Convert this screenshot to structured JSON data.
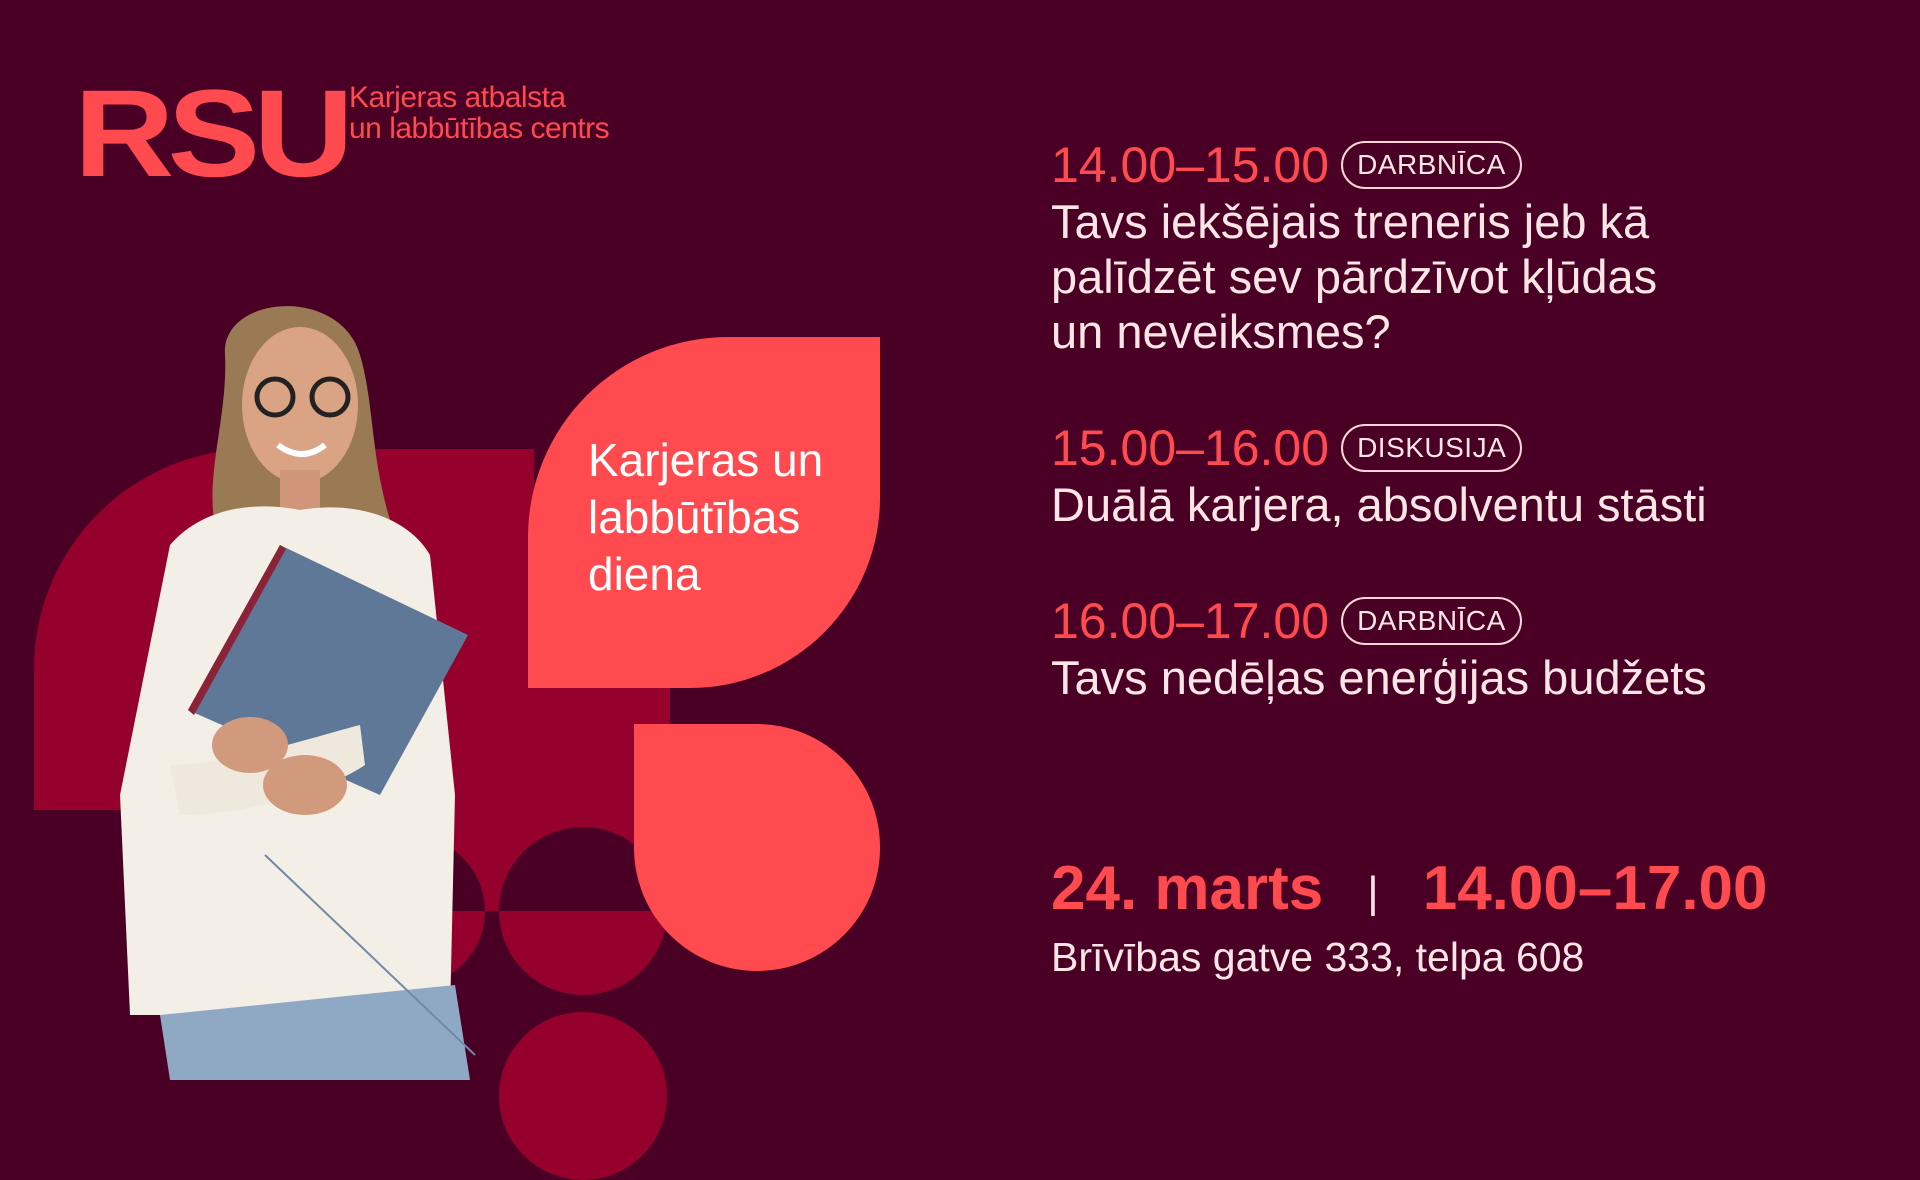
{
  "brand": {
    "logo_text": "RSU",
    "center_line1": "Karjeras atbalsta",
    "center_line2": "un labbūtības centrs"
  },
  "event": {
    "name_lines": [
      "Karjeras un",
      "labbūtības",
      "diena"
    ]
  },
  "schedule": [
    {
      "time": "14.00–15.00",
      "type": "DARBNĪCA",
      "title_lines": [
        "Tavs iekšējais treneris jeb kā",
        "palīdzēt sev pārdzīvot kļūdas",
        "un neveiksmes?"
      ]
    },
    {
      "time": "15.00–16.00",
      "type": "DISKUSIJA",
      "title_lines": [
        "Duālā karjera, absolventu stāsti"
      ]
    },
    {
      "time": "16.00–17.00",
      "type": "DARBNĪCA",
      "title_lines": [
        "Tavs nedēļas enerģijas budžets"
      ]
    }
  ],
  "footer": {
    "date": "24. marts",
    "separator": "|",
    "time_range": "14.00–17.00",
    "address": "Brīvības gatve 333, telpa 608"
  },
  "colors": {
    "background": "#4a0024",
    "accent": "#ff4a4f",
    "secondary": "#96002c",
    "text": "#ffe6e6"
  }
}
